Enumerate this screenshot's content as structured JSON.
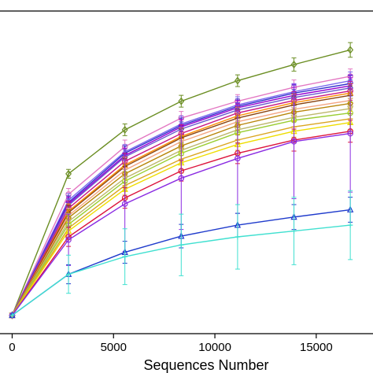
{
  "chart_data": {
    "type": "line",
    "title": "",
    "xlabel": "Sequences Number",
    "ylabel": "",
    "xlim": [
      -600,
      17800
    ],
    "ylim": [
      -250,
      4150
    ],
    "x_ticks": [
      0,
      5000,
      10000,
      15000
    ],
    "x_tick_labels": [
      "0",
      "5000",
      "10000",
      "15000"
    ],
    "grid": false,
    "legend": "none",
    "x": [
      0,
      2780,
      5560,
      8340,
      11120,
      13900,
      16680
    ],
    "series": [
      {
        "color": "#6b8e23",
        "marker": "diamond",
        "values": [
          0,
          1930,
          2530,
          2920,
          3200,
          3420,
          3620
        ],
        "err": [
          0,
          60,
          80,
          80,
          80,
          90,
          100
        ]
      },
      {
        "color": "#e377c2",
        "marker": "circle",
        "values": [
          0,
          1650,
          2300,
          2690,
          2920,
          3110,
          3260
        ],
        "err": [
          0,
          80,
          90,
          90,
          90,
          100,
          100
        ]
      },
      {
        "color": "#7b68ee",
        "marker": "triangle",
        "values": [
          0,
          1570,
          2230,
          2610,
          2870,
          3050,
          3200
        ],
        "err": [
          0,
          90,
          100,
          110,
          110,
          110,
          120
        ]
      },
      {
        "color": "#3333cc",
        "marker": "plus",
        "values": [
          0,
          1540,
          2210,
          2590,
          2850,
          3030,
          3160
        ],
        "err": [
          0,
          90,
          100,
          100,
          100,
          110,
          110
        ]
      },
      {
        "color": "#9400d3",
        "marker": "cross",
        "values": [
          0,
          1520,
          2180,
          2570,
          2830,
          3000,
          3130
        ],
        "err": [
          0,
          90,
          100,
          100,
          100,
          110,
          110
        ]
      },
      {
        "color": "#6a5acd",
        "marker": "diamond",
        "values": [
          0,
          1500,
          2160,
          2540,
          2800,
          2970,
          3100
        ],
        "err": [
          0,
          90,
          100,
          100,
          100,
          110,
          110
        ]
      },
      {
        "color": "#c71585",
        "marker": "circle",
        "values": [
          0,
          1460,
          2100,
          2480,
          2760,
          2930,
          3060
        ],
        "err": [
          0,
          100,
          110,
          120,
          120,
          120,
          130
        ]
      },
      {
        "color": "#ff8c00",
        "marker": "triangle",
        "values": [
          0,
          1420,
          2050,
          2440,
          2720,
          2900,
          3030
        ],
        "err": [
          0,
          100,
          110,
          120,
          120,
          120,
          130
        ]
      },
      {
        "color": "#8b4513",
        "marker": "plus",
        "values": [
          0,
          1400,
          2030,
          2420,
          2690,
          2870,
          3000
        ],
        "err": [
          0,
          100,
          110,
          120,
          120,
          120,
          130
        ]
      },
      {
        "color": "#f4a582",
        "marker": "cross",
        "values": [
          0,
          1360,
          1980,
          2370,
          2640,
          2810,
          2930
        ],
        "err": [
          0,
          100,
          110,
          120,
          120,
          120,
          130
        ]
      },
      {
        "color": "#b8860b",
        "marker": "diamond",
        "values": [
          0,
          1330,
          1930,
          2310,
          2590,
          2770,
          2890
        ],
        "err": [
          0,
          110,
          120,
          130,
          130,
          130,
          140
        ]
      },
      {
        "color": "#bdb76b",
        "marker": "triangle-down",
        "values": [
          0,
          1280,
          1870,
          2250,
          2530,
          2700,
          2820
        ],
        "err": [
          0,
          110,
          120,
          130,
          130,
          130,
          140
        ]
      },
      {
        "color": "#9acd32",
        "marker": "circle",
        "values": [
          0,
          1240,
          1830,
          2210,
          2490,
          2660,
          2760
        ],
        "err": [
          0,
          120,
          130,
          140,
          140,
          140,
          150
        ]
      },
      {
        "color": "#daa520",
        "marker": "plus",
        "values": [
          0,
          1190,
          1770,
          2130,
          2390,
          2570,
          2680
        ],
        "err": [
          0,
          120,
          130,
          140,
          140,
          140,
          150
        ]
      },
      {
        "color": "#eedd00",
        "marker": "triangle",
        "values": [
          0,
          1150,
          1720,
          2080,
          2330,
          2510,
          2630
        ],
        "err": [
          0,
          120,
          130,
          140,
          140,
          140,
          150
        ]
      },
      {
        "color": "#dc143c",
        "marker": "circle",
        "values": [
          0,
          1070,
          1600,
          1970,
          2210,
          2390,
          2510
        ],
        "err": [
          0,
          130,
          140,
          140,
          140,
          150,
          150
        ]
      },
      {
        "color": "#8a2be2",
        "marker": "circle",
        "values": [
          0,
          1030,
          1520,
          1870,
          2140,
          2370,
          2480
        ],
        "err": [
          0,
          350,
          650,
          700,
          750,
          780,
          800
        ]
      },
      {
        "color": "#1f3bcc",
        "marker": "triangle",
        "values": [
          0,
          560,
          860,
          1080,
          1230,
          1340,
          1440
        ],
        "err": [
          0,
          130,
          150,
          160,
          160,
          170,
          170
        ]
      },
      {
        "color": "#40e0d0",
        "marker": "plus",
        "values": [
          0,
          560,
          800,
          960,
          1070,
          1150,
          1230
        ],
        "err": [
          0,
          260,
          380,
          420,
          440,
          460,
          470
        ]
      }
    ]
  }
}
